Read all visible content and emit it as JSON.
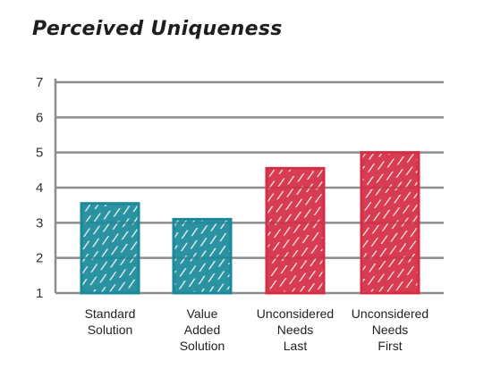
{
  "chart_data": {
    "type": "bar",
    "title": "Perceived Uniqueness",
    "categories": [
      [
        "Standard",
        "Solution"
      ],
      [
        "Value",
        "Added",
        "Solution"
      ],
      [
        "Unconsidered",
        "Needs",
        "Last"
      ],
      [
        "Unconsidered",
        "Needs",
        "First"
      ]
    ],
    "values": [
      3.55,
      3.1,
      4.55,
      5.0
    ],
    "bar_colors": [
      "#1a8a9a",
      "#1a8a9a",
      "#d42e45",
      "#d42e45"
    ],
    "ylim": [
      1,
      7
    ],
    "yticks": [
      1,
      2,
      3,
      4,
      5,
      6,
      7
    ],
    "grid": true,
    "xlabel": "",
    "ylabel": ""
  }
}
